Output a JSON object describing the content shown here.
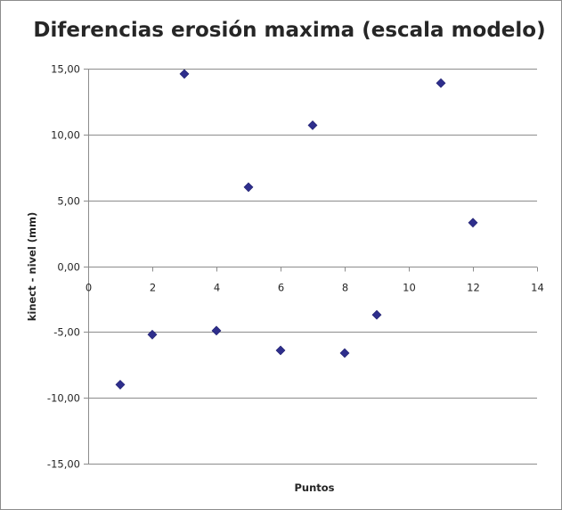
{
  "chart_data": {
    "type": "scatter",
    "title": "Diferencias erosión maxima (escala modelo)",
    "xlabel": "Puntos",
    "ylabel": "kinect - nivel (mm)",
    "xlim": [
      0,
      14
    ],
    "ylim": [
      -15,
      15
    ],
    "x_ticks": [
      0,
      2,
      4,
      6,
      8,
      10,
      12,
      14
    ],
    "x_tick_labels": [
      "0",
      "2",
      "4",
      "6",
      "8",
      "10",
      "12",
      "14"
    ],
    "y_ticks": [
      15,
      10,
      5,
      0,
      -5,
      -10,
      -15
    ],
    "y_tick_labels": [
      "15,00",
      "10,00",
      "5,00",
      "0,00",
      "-5,00",
      "-10,00",
      "-15,00"
    ],
    "horizontal_gridlines": true,
    "vertical_gridlines": false,
    "legend": "none",
    "marker": "diamond",
    "marker_color": "#2e2e8c",
    "gridline_color": "#8c8c8c",
    "series": [
      {
        "x": [
          1,
          2,
          3,
          4,
          5,
          6,
          7,
          8,
          9,
          11,
          12
        ],
        "y": [
          -9.0,
          -5.2,
          14.6,
          -4.9,
          6.0,
          -6.4,
          10.7,
          -6.6,
          -3.7,
          13.9,
          3.3
        ]
      }
    ]
  }
}
